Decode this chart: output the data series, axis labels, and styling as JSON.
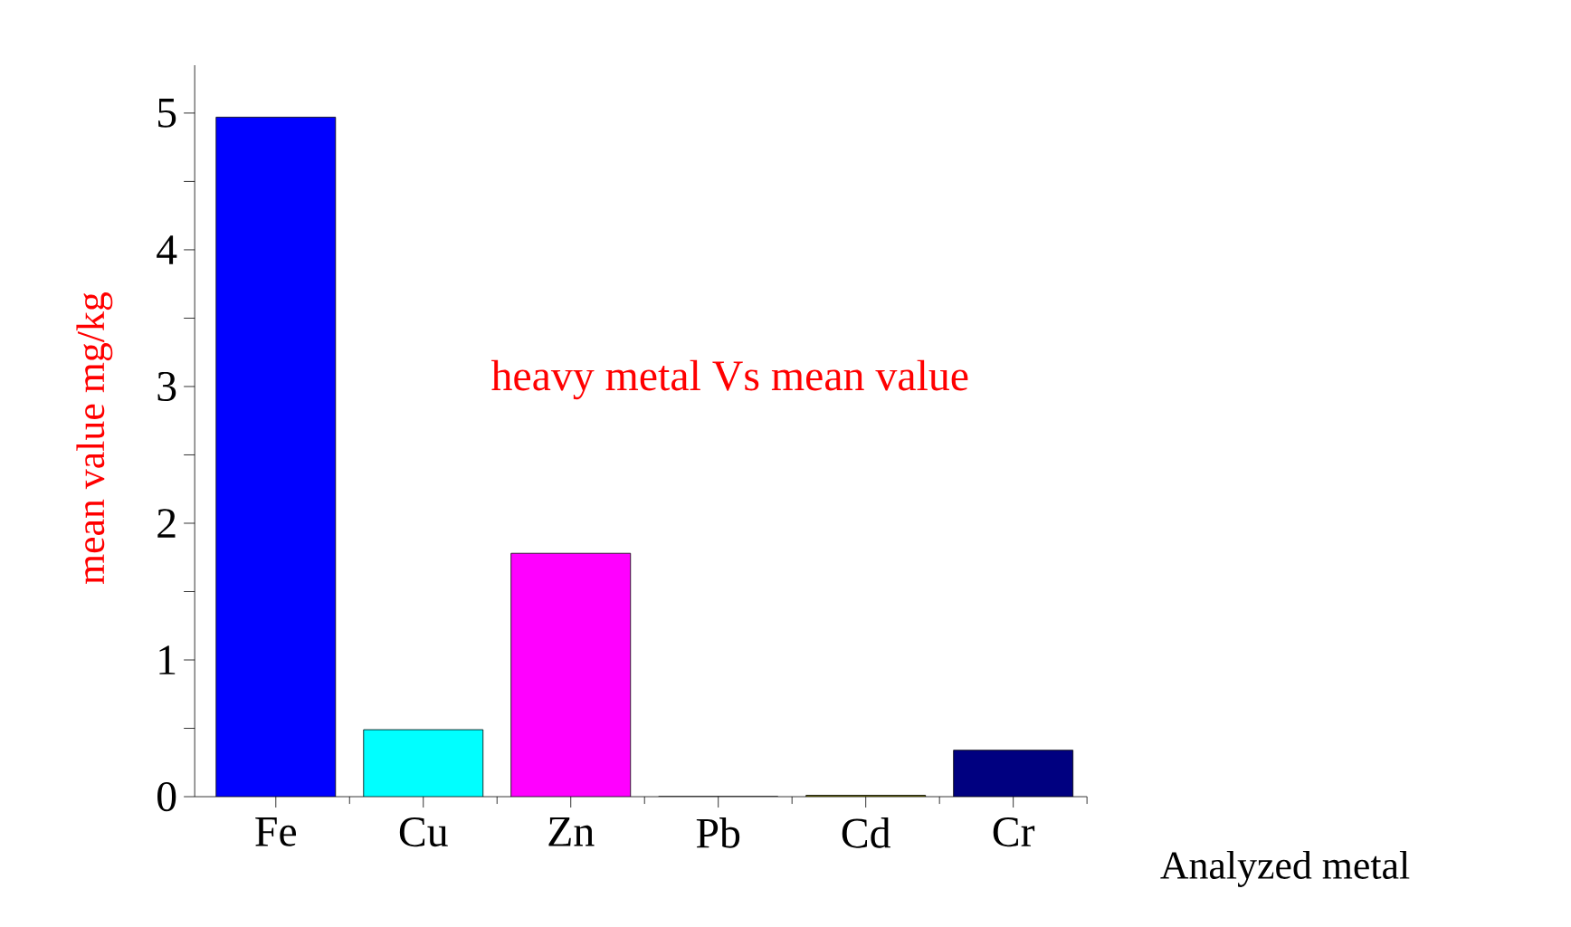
{
  "chart_data": {
    "type": "bar",
    "title": "heavy metal Vs mean value",
    "xlabel": "Analyzed metal",
    "ylabel": "mean value mg/kg",
    "categories": [
      "Fe",
      "Cu",
      "Zn",
      "Pb",
      "Cd",
      "Cr"
    ],
    "values": [
      4.97,
      0.49,
      1.78,
      0,
      0.01,
      0.34
    ],
    "colors": [
      "#0000ff",
      "#00ffff",
      "#ff00ff",
      "#ffff00",
      "#808000",
      "#000080"
    ],
    "ylim": [
      0,
      5.35
    ],
    "yticks": [
      0,
      {
        "value": 0.5,
        "label": null
      },
      1,
      {
        "value": 1.5,
        "label": null
      },
      2,
      {
        "value": 2.5,
        "label": null
      },
      3,
      {
        "value": 3.5,
        "label": null
      },
      4,
      {
        "value": 4.5,
        "label": null
      },
      5
    ],
    "grid": false
  }
}
